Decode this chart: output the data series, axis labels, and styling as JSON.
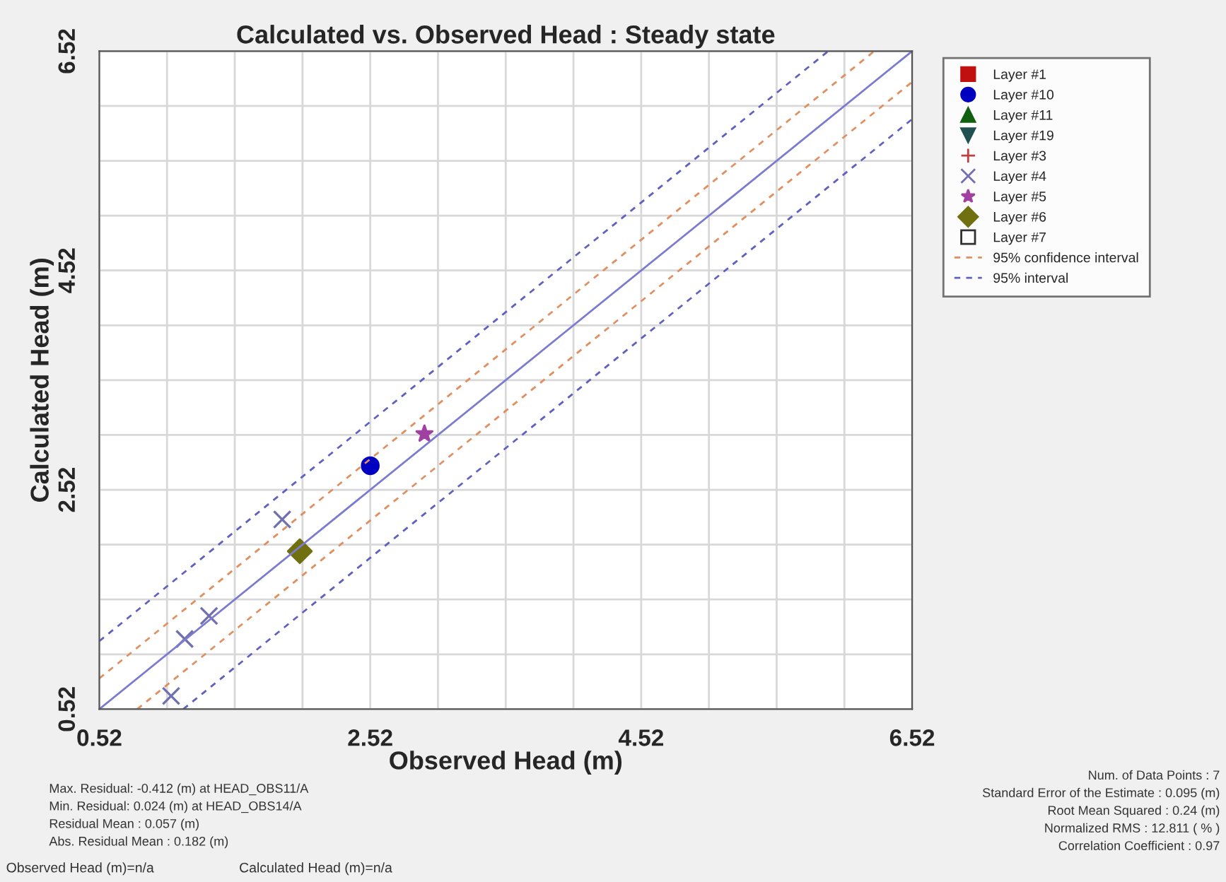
{
  "chart_data": {
    "type": "scatter",
    "title": "Calculated vs. Observed Head : Steady state",
    "xlabel": "Observed Head (m)",
    "ylabel": "Calculated Head (m)",
    "xlim": [
      0.52,
      6.52
    ],
    "ylim": [
      0.52,
      6.52
    ],
    "xticks": [
      0.52,
      {
        "value": 1.02,
        "label": null
      },
      {
        "value": 1.52,
        "label": null
      },
      {
        "value": 2.02,
        "label": null
      },
      2.52,
      {
        "value": 3.02,
        "label": null
      },
      {
        "value": 3.52,
        "label": null
      },
      {
        "value": 4.02,
        "label": null
      },
      4.52,
      {
        "value": 5.02,
        "label": null
      },
      {
        "value": 5.52,
        "label": null
      },
      {
        "value": 6.02,
        "label": null
      },
      6.52
    ],
    "yticks": [
      0.52,
      {
        "value": 1.02,
        "label": null
      },
      {
        "value": 1.52,
        "label": null
      },
      {
        "value": 2.02,
        "label": null
      },
      2.52,
      {
        "value": 3.02,
        "label": null
      },
      {
        "value": 3.52,
        "label": null
      },
      {
        "value": 4.02,
        "label": null
      },
      4.52,
      {
        "value": 5.02,
        "label": null
      },
      {
        "value": 5.52,
        "label": null
      },
      {
        "value": 6.02,
        "label": null
      },
      6.52
    ],
    "grid": true,
    "legend": "top right",
    "series": [
      {
        "name": "Layer #1",
        "color": "#c01010",
        "marker": "square"
      },
      {
        "name": "Layer #10",
        "color": "#0000c0",
        "marker": "circle",
        "x": [
          2.52
        ],
        "values": [
          2.74
        ]
      },
      {
        "name": "Layer #11",
        "color": "#106010",
        "marker": "triangle"
      },
      {
        "name": "Layer #19",
        "color": "#205050",
        "marker": "triangle_down"
      },
      {
        "name": "Layer #3",
        "color": "#c04040",
        "marker": "plus"
      },
      {
        "name": "Layer #4",
        "color": "#7070b0",
        "marker": "x",
        "x": [
          1.87,
          1.33,
          1.15,
          1.05
        ],
        "values": [
          2.25,
          1.37,
          1.16,
          0.64
        ]
      },
      {
        "name": "Layer #5",
        "color": "#a040a0",
        "marker": "star",
        "x": [
          2.92
        ],
        "values": [
          3.03
        ]
      },
      {
        "name": "Layer #6",
        "color": "#707010",
        "marker": "diamond",
        "x": [
          2.0
        ],
        "values": [
          1.96
        ]
      },
      {
        "name": "Layer #7",
        "color": "#303030",
        "marker": "square_open"
      },
      {
        "name": "95% confidence interval",
        "type": "line",
        "line_style": "dotted",
        "color": "#e09060",
        "x": [
          0.52,
          6.24
        ],
        "values": [
          0.8,
          6.52
        ]
      },
      {
        "type": "line",
        "line_style": "dotted",
        "color": "#e09060",
        "x": [
          0.8,
          6.52
        ],
        "values": [
          0.52,
          6.24
        ]
      },
      {
        "name": "95% interval",
        "type": "line",
        "line_style": "dotted",
        "color": "#6060c0",
        "x": [
          0.52,
          5.9
        ],
        "values": [
          1.14,
          6.52
        ]
      },
      {
        "type": "line",
        "line_style": "dotted",
        "color": "#6060c0",
        "x": [
          1.14,
          6.52
        ],
        "values": [
          0.52,
          5.9
        ]
      },
      {
        "type": "line",
        "line_style": "solid",
        "color": "#7b7bd0",
        "x": [
          0.52,
          6.52
        ],
        "values": [
          0.52,
          6.52
        ]
      }
    ],
    "annotations": [
      "Max. Residual: -0.412 (m) at HEAD_OBS11/A",
      "Min. Residual: 0.024 (m) at HEAD_OBS14/A",
      "Residual Mean : 0.057 (m)",
      "Abs. Residual Mean : 0.182 (m)",
      "Num. of Data Points : 7",
      "Standard Error of the Estimate : 0.095 (m)",
      "Root Mean Squared : 0.24 (m)",
      "Normalized RMS : 12.811 ( % )",
      "Correlation Coefficient : 0.97",
      "Observed Head (m)=n/a",
      "Calculated Head (m)=n/a"
    ]
  }
}
